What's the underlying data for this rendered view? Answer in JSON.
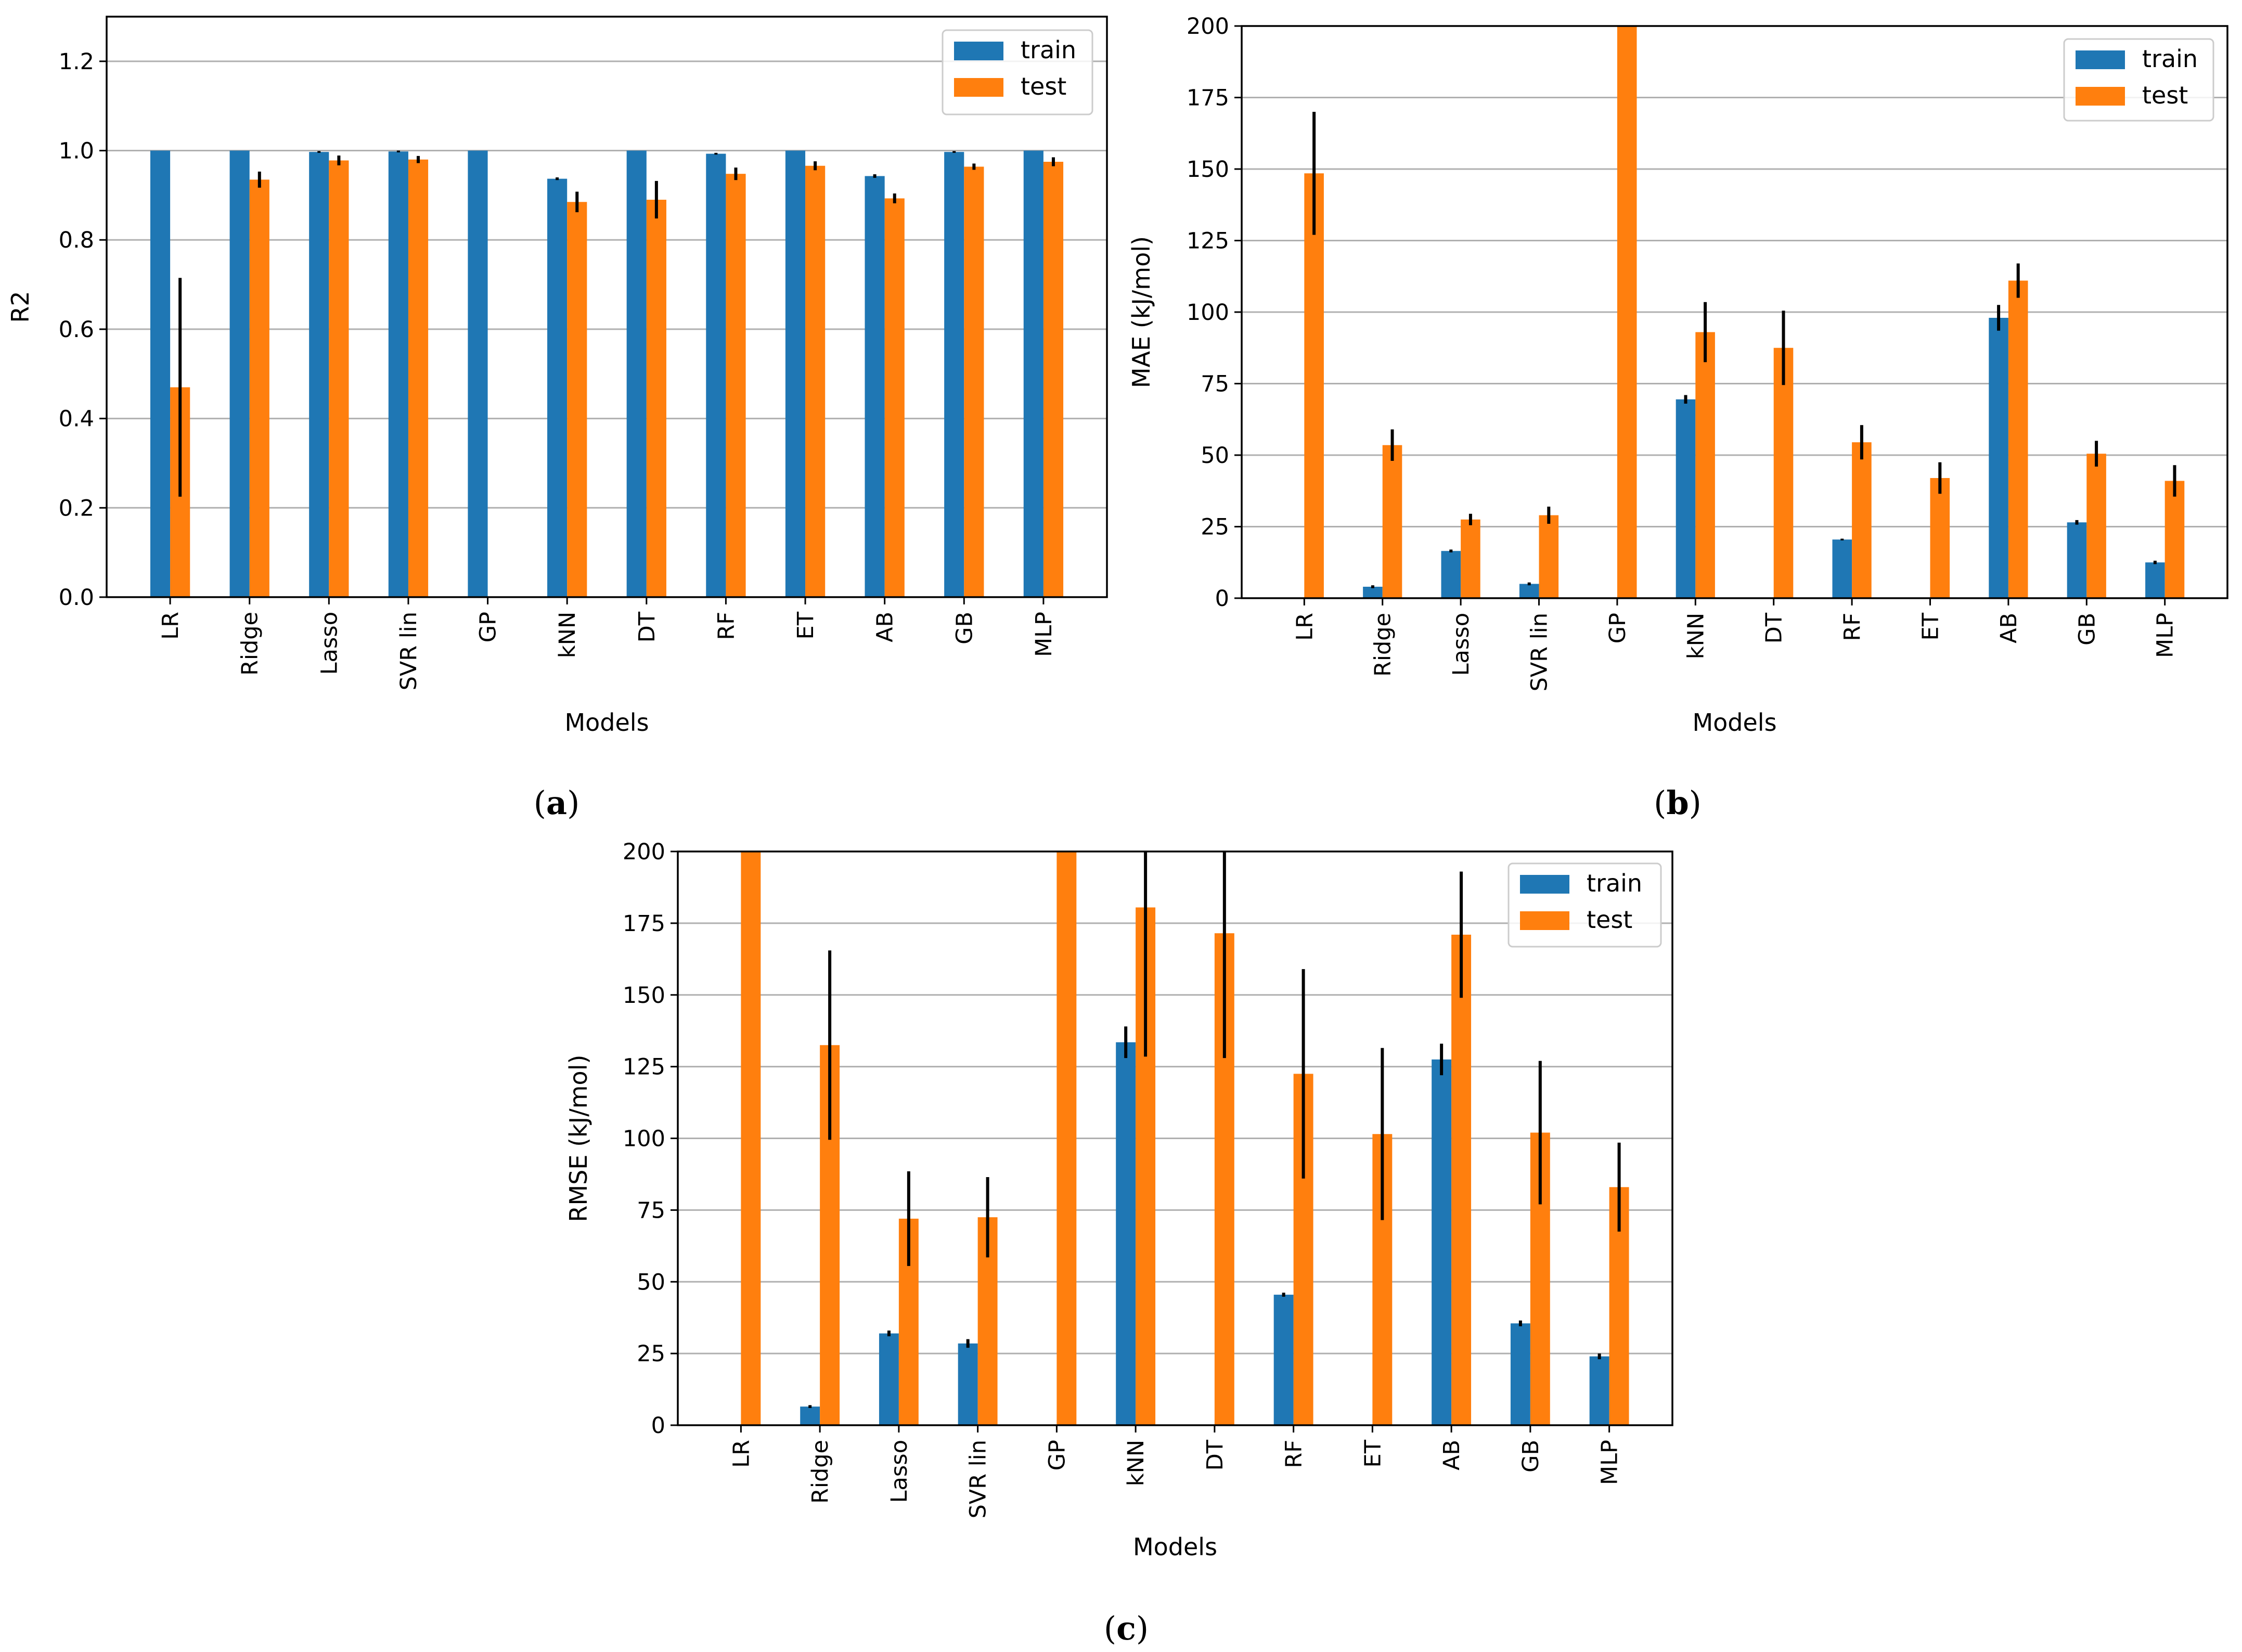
{
  "colors": {
    "train": "#1f77b4",
    "test": "#ff7f0e",
    "errorbar": "#000000",
    "grid": "#b0b0b0"
  },
  "chart_data": [
    {
      "id": "a",
      "type": "bar",
      "caption": "a",
      "xlabel": "Models",
      "ylabel": "R2",
      "ylim": [
        0,
        1.3
      ],
      "yticks": [
        0.0,
        0.2,
        0.4,
        0.6,
        0.8,
        1.0,
        1.2
      ],
      "ytick_labels": [
        "0.0",
        "0.2",
        "0.4",
        "0.6",
        "0.8",
        "1.0",
        "1.2"
      ],
      "grid": true,
      "legend_position": "top-right",
      "categories": [
        "LR",
        "Ridge",
        "Lasso",
        "SVR lin",
        "GP",
        "kNN",
        "DT",
        "RF",
        "ET",
        "AB",
        "GB",
        "MLP"
      ],
      "series": [
        {
          "name": "train",
          "values": [
            1.0,
            1.0,
            0.997,
            0.998,
            1.0,
            0.937,
            1.0,
            0.993,
            1.0,
            0.943,
            0.997,
            1.0
          ],
          "errors": [
            0,
            0,
            0.002,
            0.002,
            0,
            0.003,
            0,
            0.002,
            0,
            0.004,
            0.002,
            0
          ]
        },
        {
          "name": "test",
          "values": [
            0.47,
            0.935,
            0.978,
            0.98,
            0,
            0.885,
            0.89,
            0.948,
            0.966,
            0.893,
            0.964,
            0.975
          ],
          "errors": [
            0.245,
            0.018,
            0.011,
            0.008,
            0,
            0.023,
            0.042,
            0.014,
            0.01,
            0.011,
            0.007,
            0.01
          ]
        }
      ]
    },
    {
      "id": "b",
      "type": "bar",
      "caption": "b",
      "xlabel": "Models",
      "ylabel": "MAE (kJ/mol)",
      "ylim": [
        0,
        200
      ],
      "yticks": [
        0,
        25,
        50,
        75,
        100,
        125,
        150,
        175,
        200
      ],
      "ytick_labels": [
        "0",
        "25",
        "50",
        "75",
        "100",
        "125",
        "150",
        "175",
        "200"
      ],
      "grid": true,
      "legend_position": "top-right",
      "categories": [
        "LR",
        "Ridge",
        "Lasso",
        "SVR lin",
        "GP",
        "kNN",
        "DT",
        "RF",
        "ET",
        "AB",
        "GB",
        "MLP"
      ],
      "series": [
        {
          "name": "train",
          "values": [
            0,
            4,
            16.5,
            5,
            0,
            69.5,
            0,
            20.5,
            0,
            98,
            26.5,
            12.5
          ],
          "errors": [
            0,
            0.5,
            0.5,
            0.5,
            0,
            1.5,
            0,
            0.3,
            0,
            4.5,
            0.8,
            0.6
          ]
        },
        {
          "name": "test",
          "values": [
            148.5,
            53.5,
            27.5,
            29,
            200,
            93,
            87.5,
            54.5,
            42,
            111,
            50.5,
            41
          ],
          "errors": [
            21.5,
            5.5,
            2,
            3,
            0,
            10.5,
            13,
            6,
            5.5,
            6,
            4.5,
            5.5
          ]
        }
      ]
    },
    {
      "id": "c",
      "type": "bar",
      "caption": "c",
      "xlabel": "Models",
      "ylabel": "RMSE (kJ/mol)",
      "ylim": [
        0,
        200
      ],
      "yticks": [
        0,
        25,
        50,
        75,
        100,
        125,
        150,
        175,
        200
      ],
      "ytick_labels": [
        "0",
        "25",
        "50",
        "75",
        "100",
        "125",
        "150",
        "175",
        "200"
      ],
      "grid": true,
      "legend_position": "top-right",
      "categories": [
        "LR",
        "Ridge",
        "Lasso",
        "SVR lin",
        "GP",
        "kNN",
        "DT",
        "RF",
        "ET",
        "AB",
        "GB",
        "MLP"
      ],
      "series": [
        {
          "name": "train",
          "values": [
            0,
            6.5,
            32,
            28.5,
            0,
            133.5,
            0,
            45.5,
            0,
            127.5,
            35.5,
            24
          ],
          "errors": [
            0,
            0.5,
            1,
            1.5,
            0,
            5.5,
            0,
            0.7,
            0,
            5.5,
            1,
            1
          ]
        },
        {
          "name": "test",
          "values": [
            200,
            132.5,
            72,
            72.5,
            200,
            180.5,
            171.5,
            122.5,
            101.5,
            171,
            102,
            83
          ],
          "errors": [
            0,
            33,
            16.5,
            14,
            0,
            52,
            43.5,
            36.5,
            30,
            22,
            25,
            15.5
          ]
        }
      ]
    }
  ]
}
